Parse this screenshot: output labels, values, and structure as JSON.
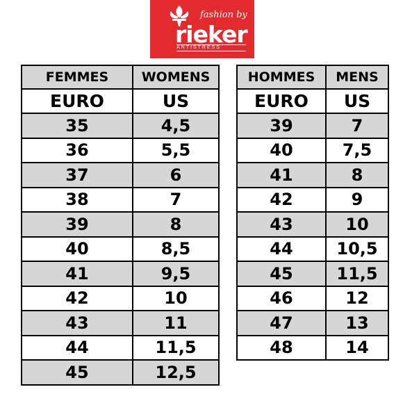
{
  "logo": {
    "tagline": "fashion by",
    "brand": "rieker",
    "sub": "ANTISTRESS"
  },
  "women": {
    "title_fr": "FEMMES",
    "title_en": "WOMENS",
    "col_euro": "EURO",
    "col_us": "US",
    "rows": [
      {
        "euro": "35",
        "us": "4,5"
      },
      {
        "euro": "36",
        "us": "5,5"
      },
      {
        "euro": "37",
        "us": "6"
      },
      {
        "euro": "38",
        "us": "7"
      },
      {
        "euro": "39",
        "us": "8"
      },
      {
        "euro": "40",
        "us": "8,5"
      },
      {
        "euro": "41",
        "us": "9,5"
      },
      {
        "euro": "42",
        "us": "10"
      },
      {
        "euro": "43",
        "us": "11"
      },
      {
        "euro": "44",
        "us": "11,5"
      },
      {
        "euro": "45",
        "us": "12,5"
      }
    ]
  },
  "men": {
    "title_fr": "HOMMES",
    "title_en": "MENS",
    "col_euro": "EURO",
    "col_us": "US",
    "rows": [
      {
        "euro": "39",
        "us": "7"
      },
      {
        "euro": "40",
        "us": "7,5"
      },
      {
        "euro": "41",
        "us": "8"
      },
      {
        "euro": "42",
        "us": "9"
      },
      {
        "euro": "43",
        "us": "10"
      },
      {
        "euro": "44",
        "us": "10,5"
      },
      {
        "euro": "45",
        "us": "11,5"
      },
      {
        "euro": "46",
        "us": "12"
      },
      {
        "euro": "47",
        "us": "13"
      },
      {
        "euro": "48",
        "us": "14"
      }
    ]
  }
}
